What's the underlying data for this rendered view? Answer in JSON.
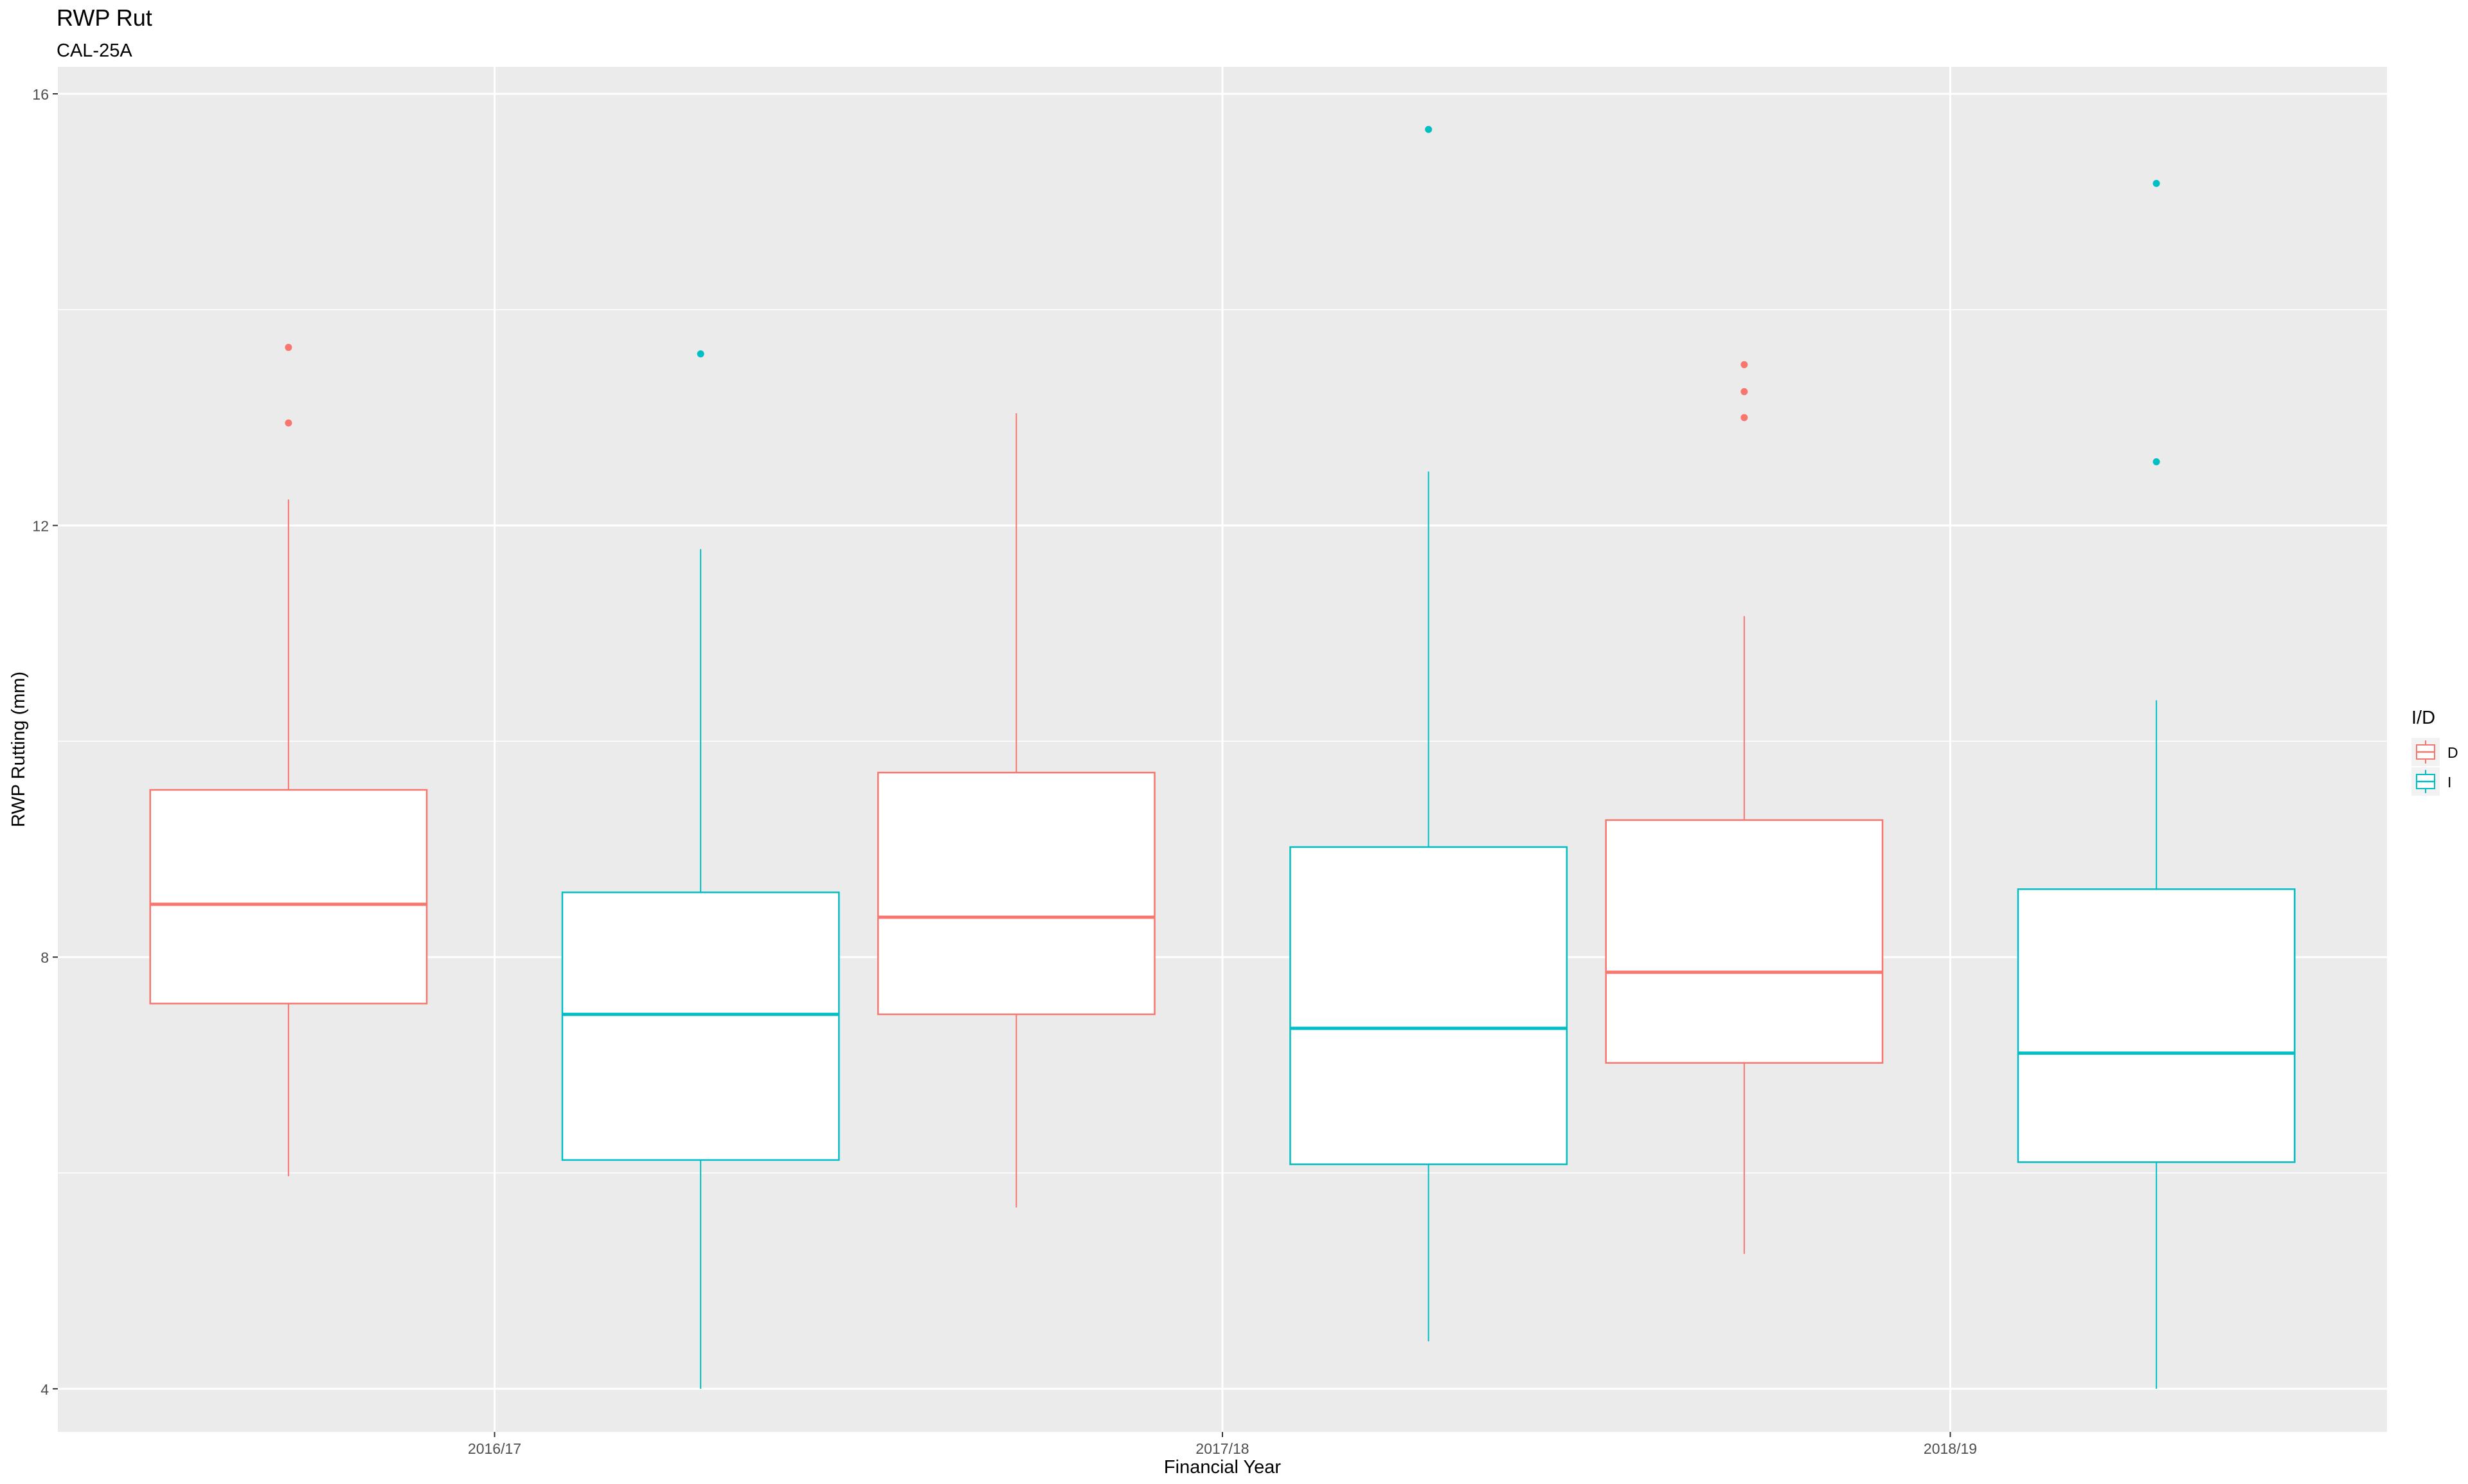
{
  "chart_data": {
    "type": "boxplot",
    "title": "RWP Rut",
    "subtitle": "CAL-25A",
    "xlabel": "Financial Year",
    "ylabel": "RWP Rutting (mm)",
    "categories": [
      "2016/17",
      "2017/18",
      "2018/19"
    ],
    "ylim": [
      3.6,
      16.25
    ],
    "yticks": [
      4,
      8,
      12,
      16
    ],
    "grid": true,
    "legend": {
      "title": "I/D",
      "position": "right",
      "entries": [
        "D",
        "I"
      ]
    },
    "series": [
      {
        "name": "D",
        "color": "#F8766D",
        "boxes": [
          {
            "category": "2016/17",
            "whisker_low": 5.97,
            "q1": 7.57,
            "median": 8.49,
            "q3": 9.55,
            "whisker_high": 12.24,
            "outliers": [
              12.95,
              13.65
            ]
          },
          {
            "category": "2017/18",
            "whisker_low": 5.68,
            "q1": 7.47,
            "median": 8.37,
            "q3": 9.71,
            "whisker_high": 13.04,
            "outliers": []
          },
          {
            "category": "2018/19",
            "whisker_low": 5.25,
            "q1": 7.02,
            "median": 7.86,
            "q3": 9.27,
            "whisker_high": 11.16,
            "outliers": [
              13.0,
              13.24,
              13.49
            ]
          }
        ]
      },
      {
        "name": "I",
        "color": "#00BFC4",
        "boxes": [
          {
            "category": "2016/17",
            "whisker_low": 4.0,
            "q1": 6.12,
            "median": 7.47,
            "q3": 8.6,
            "whisker_high": 11.78,
            "outliers": [
              13.59
            ]
          },
          {
            "category": "2017/18",
            "whisker_low": 4.44,
            "q1": 6.08,
            "median": 7.34,
            "q3": 9.02,
            "whisker_high": 12.5,
            "outliers": [
              15.67
            ]
          },
          {
            "category": "2018/19",
            "whisker_low": 4.0,
            "q1": 6.1,
            "median": 7.11,
            "q3": 8.63,
            "whisker_high": 10.38,
            "outliers": [
              12.59,
              15.17
            ]
          }
        ]
      }
    ]
  }
}
